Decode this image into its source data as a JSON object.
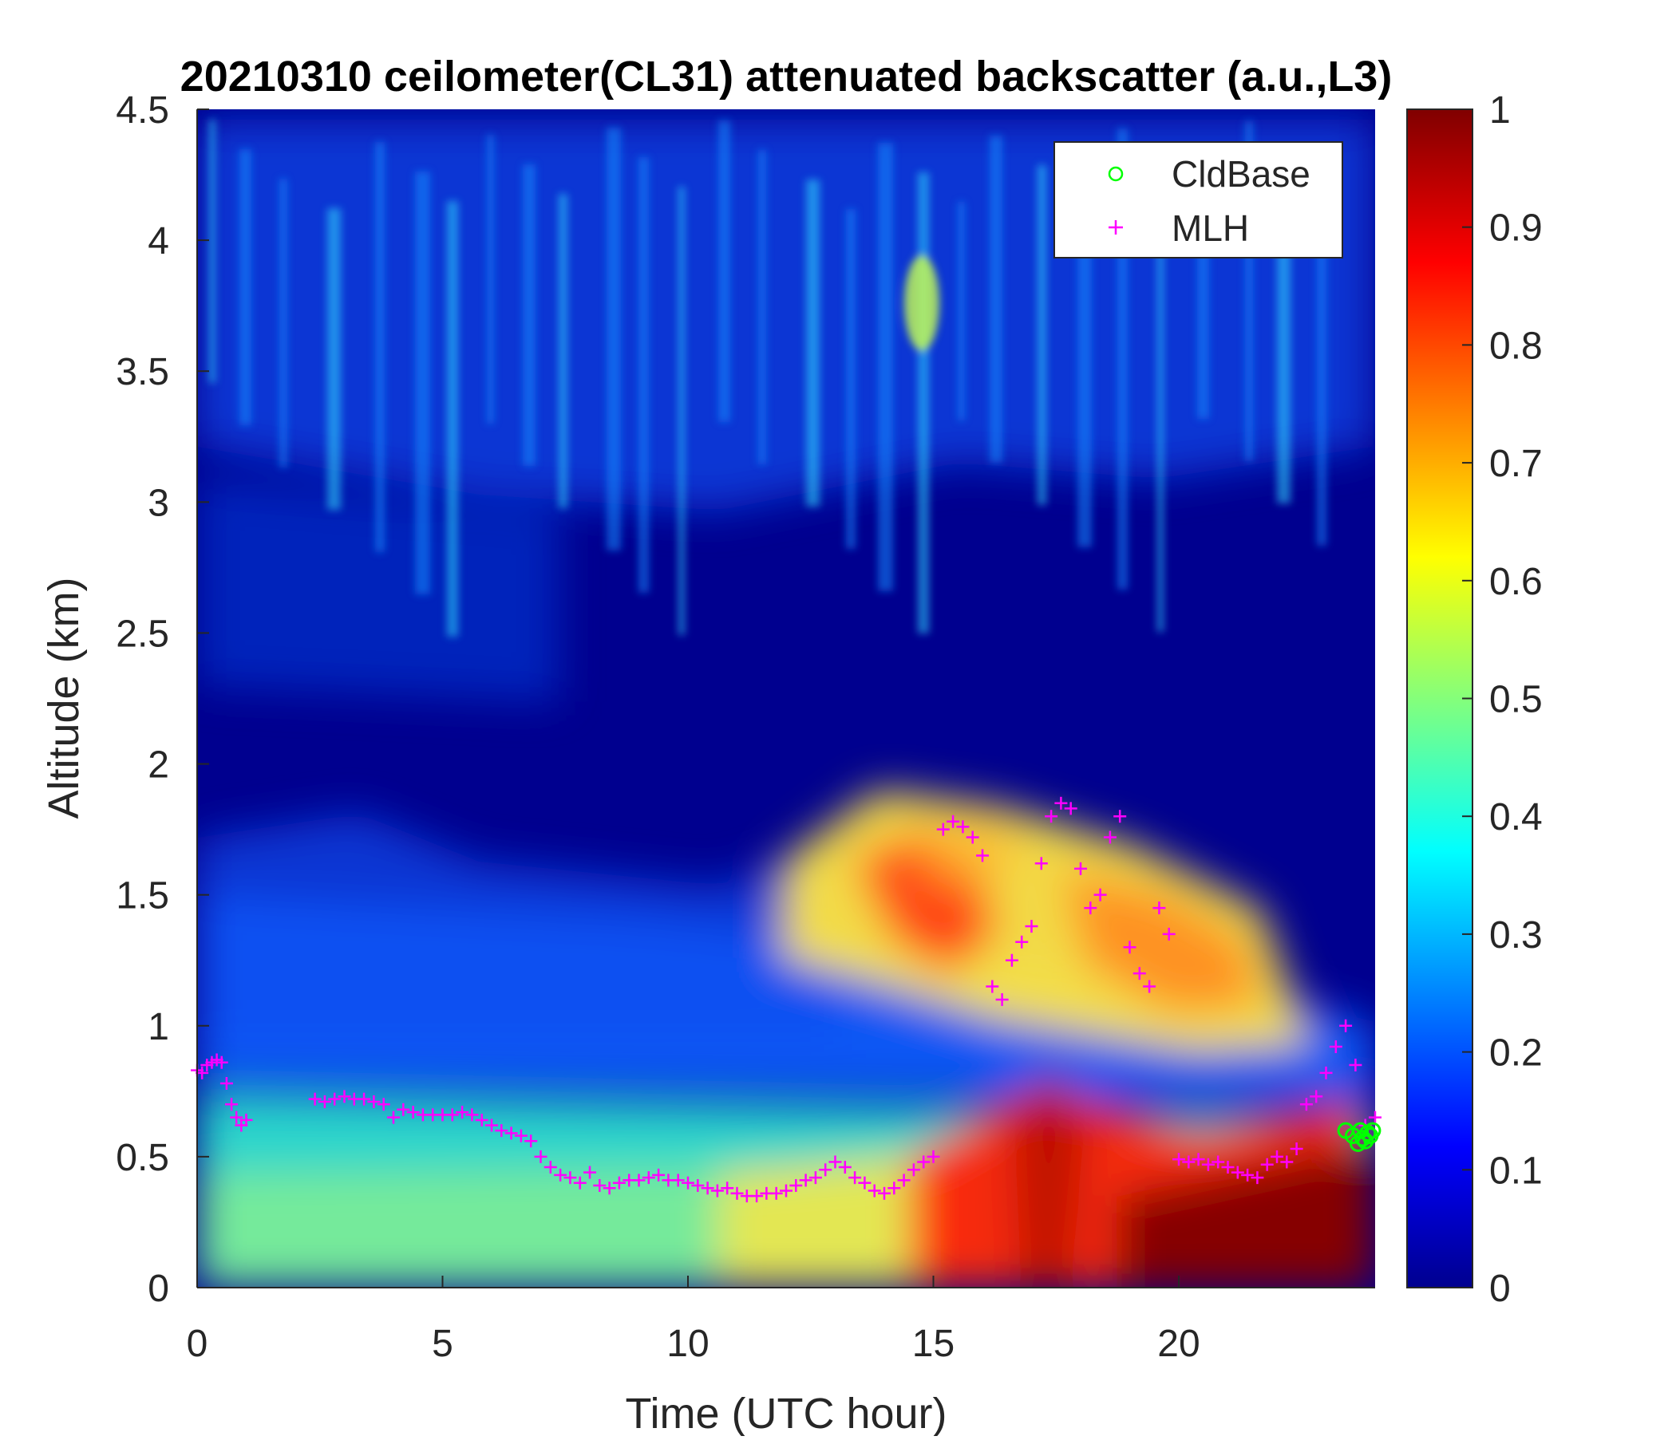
{
  "chart_data": {
    "type": "heatmap",
    "title": "20210310 ceilometer(CL31) attenuated backscatter (a.u.,L3)",
    "xlabel": "Time (UTC hour)",
    "ylabel": "Altitude (km)",
    "xlim": [
      0,
      24
    ],
    "ylim": [
      0,
      4.5
    ],
    "xticks": [
      "0",
      "5",
      "10",
      "15",
      "20"
    ],
    "xtick_values": [
      0,
      5,
      10,
      15,
      20
    ],
    "yticks": [
      "0",
      "0.5",
      "1",
      "1.5",
      "2",
      "2.5",
      "3",
      "3.5",
      "4",
      "4.5"
    ],
    "ytick_values": [
      0,
      0.5,
      1,
      1.5,
      2,
      2.5,
      3,
      3.5,
      4,
      4.5
    ],
    "colorbar": {
      "colormap": "jet",
      "range": [
        0,
        1
      ],
      "ticks": [
        "0",
        "0.1",
        "0.2",
        "0.3",
        "0.4",
        "0.5",
        "0.6",
        "0.7",
        "0.8",
        "0.9",
        "1"
      ],
      "tick_values": [
        0,
        0.1,
        0.2,
        0.3,
        0.4,
        0.5,
        0.6,
        0.7,
        0.8,
        0.9,
        1
      ]
    },
    "legend": {
      "position": "top-right",
      "entries": [
        {
          "label": "CldBase",
          "marker": "circle",
          "color": "#00ff00"
        },
        {
          "label": "MLH",
          "marker": "plus",
          "color": "#ff00ff"
        }
      ]
    },
    "series": [
      {
        "name": "MLH",
        "marker": "plus",
        "color": "#ff00ff",
        "x": [
          0.0,
          0.1,
          0.2,
          0.3,
          0.4,
          0.5,
          0.6,
          0.7,
          0.8,
          0.9,
          1.0,
          2.4,
          2.6,
          2.8,
          3.0,
          3.2,
          3.4,
          3.6,
          3.8,
          4.0,
          4.2,
          4.4,
          4.6,
          4.8,
          5.0,
          5.2,
          5.4,
          5.6,
          5.8,
          6.0,
          6.2,
          6.4,
          6.6,
          6.8,
          7.0,
          7.2,
          7.4,
          7.6,
          7.8,
          8.0,
          8.2,
          8.4,
          8.6,
          8.8,
          9.0,
          9.2,
          9.4,
          9.6,
          9.8,
          10.0,
          10.2,
          10.4,
          10.6,
          10.8,
          11.0,
          11.2,
          11.4,
          11.6,
          11.8,
          12.0,
          12.2,
          12.4,
          12.6,
          12.8,
          13.0,
          13.2,
          13.4,
          13.6,
          13.8,
          14.0,
          14.2,
          14.4,
          14.6,
          14.8,
          15.0,
          15.2,
          15.4,
          15.6,
          15.8,
          16.0,
          16.2,
          16.4,
          16.6,
          16.8,
          17.0,
          17.2,
          17.4,
          17.6,
          17.8,
          18.0,
          18.2,
          18.4,
          18.6,
          18.8,
          19.0,
          19.2,
          19.4,
          19.6,
          19.8,
          20.0,
          20.2,
          20.4,
          20.6,
          20.8,
          21.0,
          21.2,
          21.4,
          21.6,
          21.8,
          22.0,
          22.2,
          22.4,
          22.6,
          22.8,
          23.0,
          23.2,
          23.4,
          23.6,
          23.8,
          24.0
        ],
        "y": [
          0.83,
          0.82,
          0.85,
          0.86,
          0.87,
          0.86,
          0.78,
          0.7,
          0.65,
          0.62,
          0.64,
          0.72,
          0.71,
          0.72,
          0.73,
          0.72,
          0.72,
          0.71,
          0.7,
          0.65,
          0.68,
          0.67,
          0.66,
          0.66,
          0.66,
          0.66,
          0.67,
          0.66,
          0.64,
          0.62,
          0.6,
          0.59,
          0.58,
          0.56,
          0.5,
          0.46,
          0.43,
          0.42,
          0.4,
          0.44,
          0.39,
          0.38,
          0.4,
          0.41,
          0.41,
          0.42,
          0.43,
          0.41,
          0.41,
          0.4,
          0.39,
          0.38,
          0.37,
          0.38,
          0.36,
          0.35,
          0.35,
          0.36,
          0.36,
          0.37,
          0.39,
          0.41,
          0.42,
          0.45,
          0.48,
          0.46,
          0.42,
          0.4,
          0.37,
          0.36,
          0.38,
          0.41,
          0.45,
          0.48,
          0.5,
          1.75,
          1.78,
          1.76,
          1.72,
          1.65,
          1.15,
          1.1,
          1.25,
          1.32,
          1.38,
          1.62,
          1.8,
          1.85,
          1.83,
          1.6,
          1.45,
          1.5,
          1.72,
          1.8,
          1.3,
          1.2,
          1.15,
          1.45,
          1.35,
          0.49,
          0.48,
          0.49,
          0.47,
          0.48,
          0.46,
          0.44,
          0.43,
          0.42,
          0.47,
          0.5,
          0.48,
          0.53,
          0.7,
          0.73,
          0.82,
          0.92,
          1.0,
          0.85,
          0.62,
          0.65
        ]
      },
      {
        "name": "CldBase",
        "marker": "circle",
        "color": "#00ff00",
        "x": [
          23.4,
          23.55,
          23.65,
          23.7,
          23.75,
          23.8,
          23.85,
          23.9,
          23.95
        ],
        "y": [
          0.6,
          0.58,
          0.55,
          0.6,
          0.57,
          0.56,
          0.59,
          0.58,
          0.6
        ]
      }
    ]
  }
}
